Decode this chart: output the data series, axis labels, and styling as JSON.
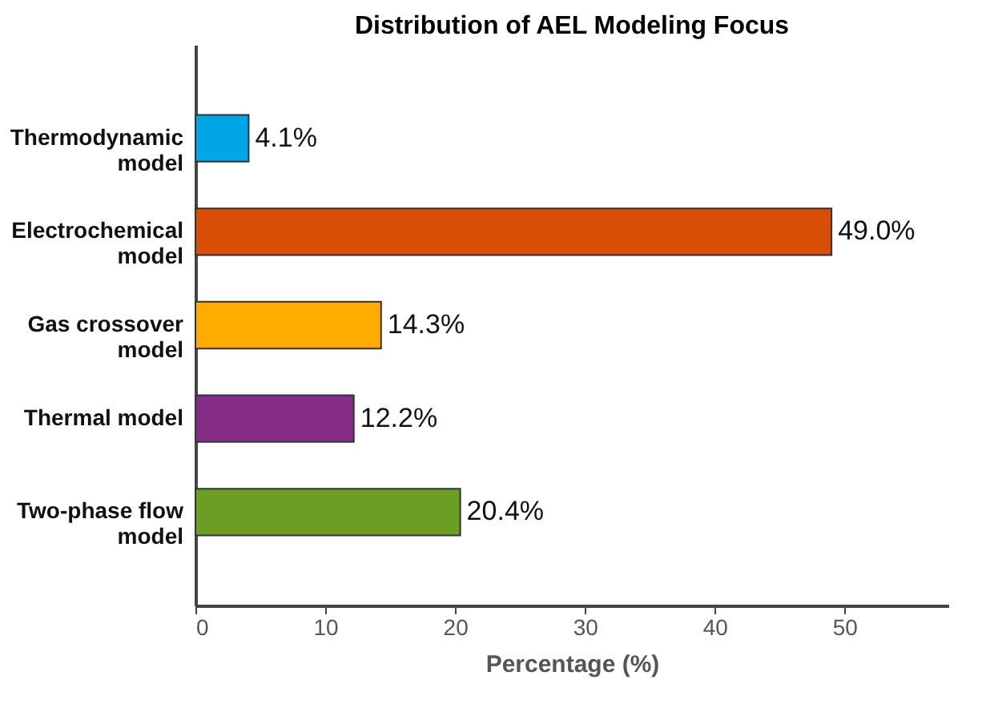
{
  "chart_data": {
    "type": "bar",
    "orientation": "horizontal",
    "title": "Distribution of AEL Modeling Focus",
    "xlabel": "Percentage (%)",
    "categories": [
      "Thermodynamic\nmodel",
      "Electrochemical\nmodel",
      "Gas crossover\nmodel",
      "Thermal model",
      "Two-phase flow\nmodel"
    ],
    "values": [
      4.1,
      49.0,
      14.3,
      12.2,
      20.4
    ],
    "colors": [
      "#00a6e8",
      "#d94e05",
      "#ffab00",
      "#842c87",
      "#6b9e23"
    ],
    "value_labels": [
      "4.1%",
      "49.0%",
      "14.3%",
      "12.2%",
      "20.4%"
    ],
    "xlim": [
      0,
      58
    ],
    "xticks": [
      0,
      10,
      20,
      30,
      40,
      50
    ],
    "grid": false
  }
}
